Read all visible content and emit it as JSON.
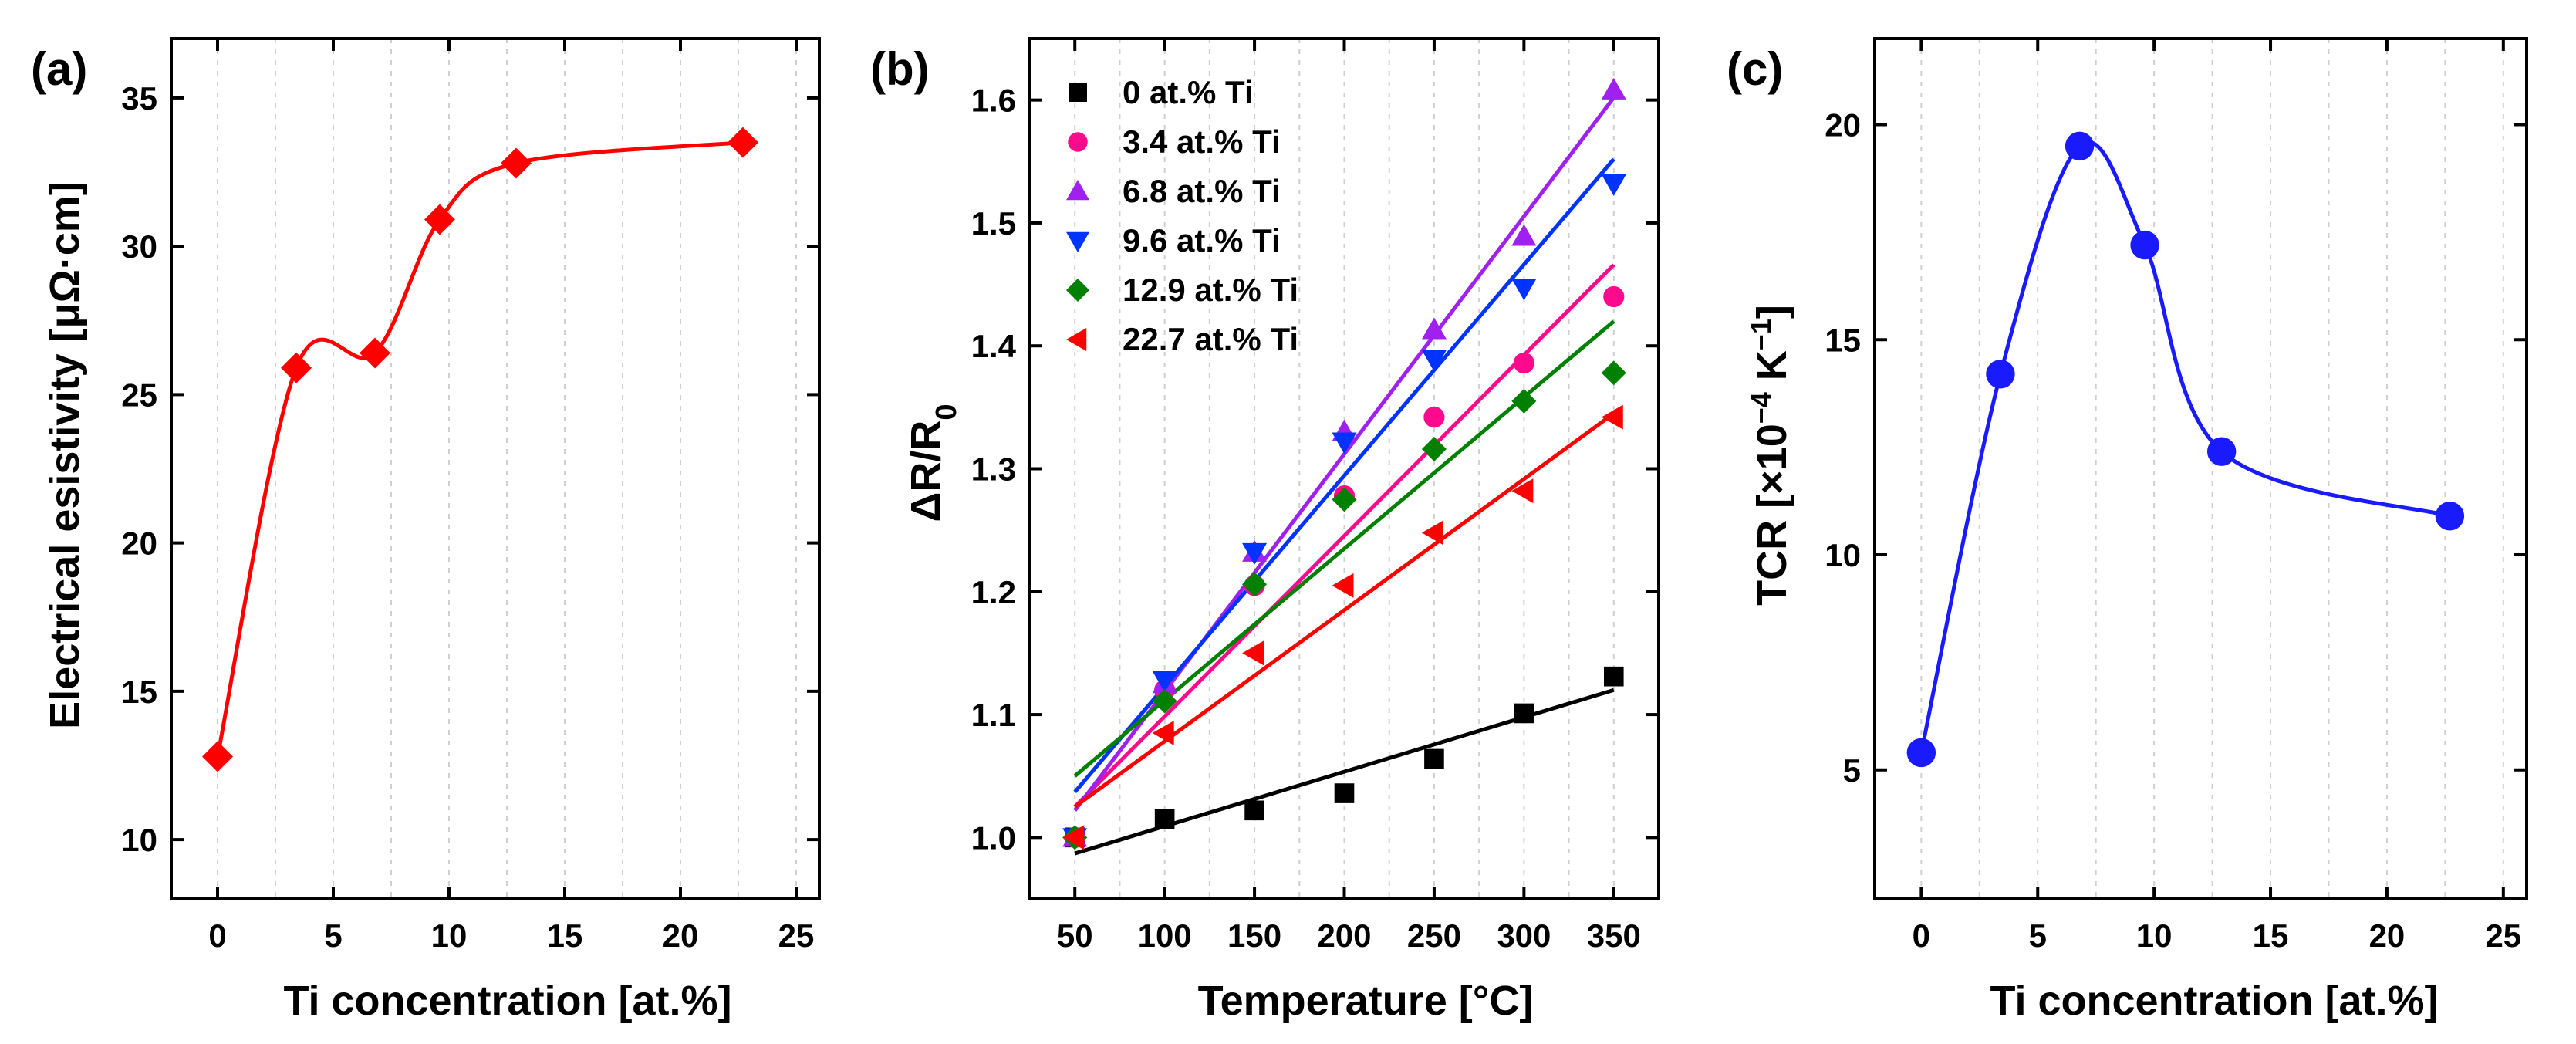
{
  "chart_data": [
    {
      "panel_label": "(a)",
      "type": "line",
      "curve": "smooth",
      "marker": "diamond",
      "color": "#ff0000",
      "x": [
        0,
        3.4,
        6.8,
        9.6,
        12.9,
        22.7
      ],
      "y": [
        12.8,
        25.9,
        26.4,
        30.9,
        32.8,
        33.5
      ],
      "xlim": [
        -2,
        26
      ],
      "ylim": [
        8,
        37
      ],
      "xticks": [
        0,
        5,
        10,
        15,
        20,
        25
      ],
      "yticks": [
        10,
        15,
        20,
        25,
        30,
        35
      ],
      "xlabel": "Ti concentration [at.%]",
      "ylabel": "Electrical esistivity [μΩ·cm]",
      "grid": "vertical"
    },
    {
      "panel_label": "(b)",
      "type": "scatter",
      "fit": "linear",
      "x": [
        50,
        100,
        150,
        200,
        250,
        300,
        350
      ],
      "xlim": [
        25,
        375
      ],
      "ylim": [
        0.95,
        1.65
      ],
      "xticks": [
        50,
        100,
        150,
        200,
        250,
        300,
        350
      ],
      "yticks": [
        1.0,
        1.1,
        1.2,
        1.3,
        1.4,
        1.5,
        1.6
      ],
      "xlabel": "Temperature [°C]",
      "ylabel": "ΔR/R",
      "ylabel_subscript": "0",
      "grid": "vertical",
      "legend_position": "top-left",
      "series": [
        {
          "name": "0 at.% Ti",
          "color": "#000000",
          "marker": "square",
          "values": [
            1.0,
            1.015,
            1.022,
            1.036,
            1.064,
            1.101,
            1.131
          ],
          "fit_range": [
            0.987,
            1.12
          ]
        },
        {
          "name": "3.4 at.% Ti",
          "color": "#ff0a8c",
          "marker": "circle",
          "values": [
            1.0,
            1.12,
            1.205,
            1.278,
            1.342,
            1.386,
            1.44
          ],
          "fit_range": [
            1.025,
            1.466
          ]
        },
        {
          "name": "6.8 at.% Ti",
          "color": "#a020f0",
          "marker": "triangle-up",
          "values": [
            1.0,
            1.125,
            1.232,
            1.33,
            1.413,
            1.489,
            1.608
          ],
          "fit_range": [
            1.022,
            1.602
          ]
        },
        {
          "name": "9.6 at.% Ti",
          "color": "#0033ff",
          "marker": "triangle-down",
          "values": [
            1.0,
            1.128,
            1.232,
            1.322,
            1.389,
            1.447,
            1.532
          ],
          "fit_range": [
            1.037,
            1.552
          ]
        },
        {
          "name": "12.9 at.% Ti",
          "color": "#008000",
          "marker": "diamond",
          "values": [
            1.0,
            1.111,
            1.206,
            1.275,
            1.316,
            1.355,
            1.378
          ],
          "fit_range": [
            1.05,
            1.42
          ]
        },
        {
          "name": "22.7 at.% Ti",
          "color": "#ff0000",
          "marker": "triangle-left",
          "values": [
            1.0,
            1.085,
            1.15,
            1.205,
            1.248,
            1.282,
            1.342
          ],
          "fit_range": [
            1.025,
            1.345
          ]
        }
      ]
    },
    {
      "panel_label": "(c)",
      "type": "line",
      "curve": "smooth",
      "marker": "circle",
      "color": "#1a1aff",
      "x": [
        0,
        3.4,
        6.8,
        9.6,
        12.9,
        22.7
      ],
      "y": [
        5.4,
        14.2,
        19.5,
        17.2,
        12.4,
        10.9
      ],
      "xlim": [
        -2,
        26
      ],
      "ylim": [
        2,
        22
      ],
      "xticks": [
        0,
        5,
        10,
        15,
        20,
        25
      ],
      "yticks": [
        5,
        10,
        15,
        20
      ],
      "xlabel": "Ti concentration [at.%]",
      "ylabel_parts": {
        "pre": "TCR [×10",
        "exp1": "−4",
        "mid": " K",
        "exp2": "−1",
        "post": "]"
      },
      "grid": "vertical"
    }
  ]
}
